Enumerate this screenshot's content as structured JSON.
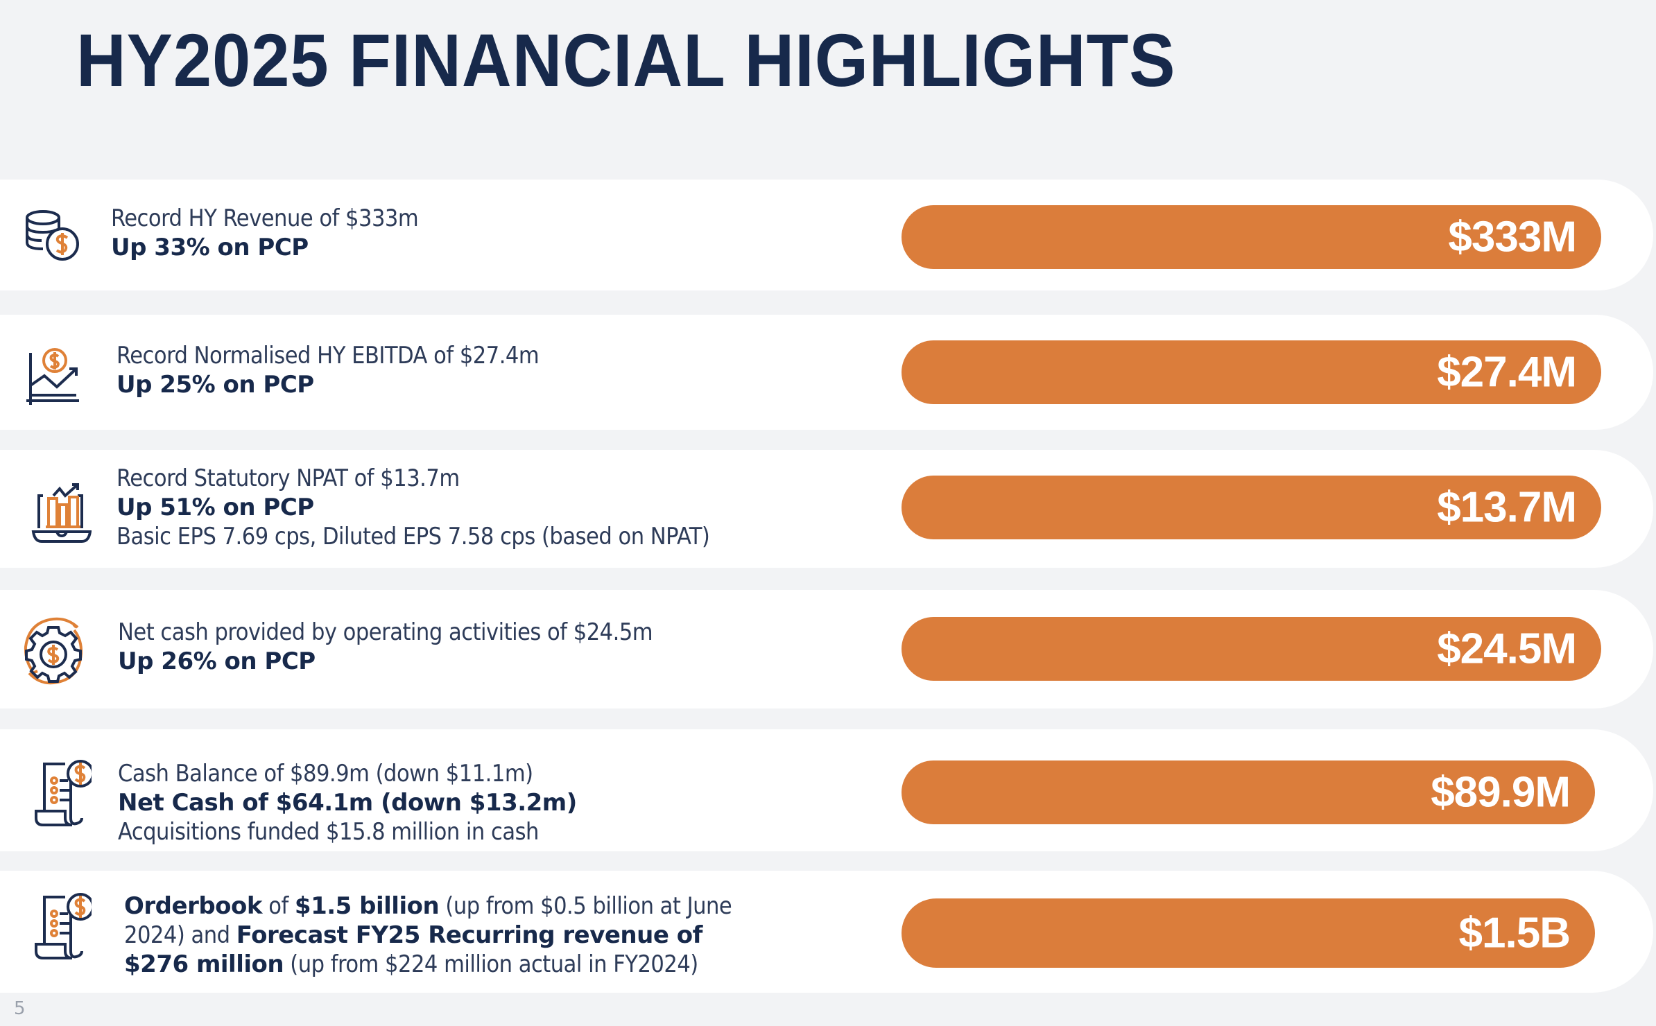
{
  "title": "HY2025 FINANCIAL HIGHLIGHTS",
  "colors": {
    "accent": "#db7d3b",
    "navy": "#17294b",
    "background": "#f2f3f5"
  },
  "highlights": [
    {
      "icon": "coins-dollar-icon",
      "line1": "Record HY Revenue of $333m",
      "line2": "Up 33% on PCP",
      "value": "$333M"
    },
    {
      "icon": "chart-growth-dollar-icon",
      "line1": "Record Normalised HY EBITDA of $27.4m",
      "line2": "Up 25% on PCP",
      "value": "$27.4M"
    },
    {
      "icon": "laptop-bar-chart-icon",
      "line1": "Record Statutory NPAT of $13.7m",
      "line2": "Up 51% on PCP",
      "line3": "Basic EPS 7.69 cps, Diluted EPS 7.58 cps (based on NPAT)",
      "value": "$13.7M"
    },
    {
      "icon": "gear-cycle-dollar-icon",
      "line1": "Net cash provided by operating activities of $24.5m",
      "line2": "Up 26% on PCP",
      "value": "$24.5M"
    },
    {
      "icon": "receipt-dollar-icon",
      "line1": "Cash Balance of $89.9m (down $11.1m)",
      "line2": "Net Cash of $64.1m (down $13.2m)",
      "line3": "Acquisitions funded $15.8 million in cash",
      "value": "$89.9M"
    },
    {
      "icon": "receipt-dollar-icon",
      "parts": [
        "Orderbook",
        " of ",
        "$1.5 billion",
        " (up from $0.5 billion at June 2024) and ",
        "Forecast FY25 Recurring revenue of $276 million",
        " (up from $224 million actual in FY2024)"
      ],
      "value": "$1.5B"
    }
  ],
  "page_number": "5"
}
